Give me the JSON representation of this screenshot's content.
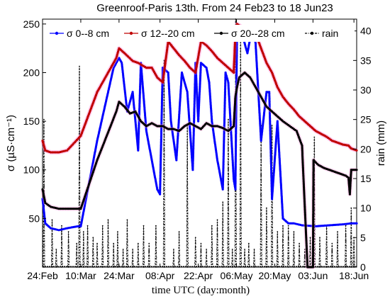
{
  "chart_data": {
    "type": "line",
    "title": "Greenroof-Paris 13th. From 24 Feb23 to 18 Jun23",
    "xlabel": "time UTC (day:month)",
    "ylabel_left": "σ (µS·cm⁻¹)",
    "ylabel_right": "rain (mm)",
    "x_tick_labels": [
      "24:Feb",
      "10:Mar",
      "24:Mar",
      "08:Apr",
      "22:Apr",
      "06:May",
      "20:May",
      "03:Jun",
      "18:Jun"
    ],
    "x_tick_days": [
      0,
      14,
      28,
      43,
      57,
      71,
      85,
      99,
      114
    ],
    "x_range_days": [
      0,
      115
    ],
    "ylim_left": [
      0,
      255
    ],
    "yticks_left": [
      50,
      100,
      150,
      200,
      250
    ],
    "ylim_right": [
      0,
      42
    ],
    "yticks_right": [
      0,
      5,
      10,
      15,
      20,
      25,
      30,
      35,
      40
    ],
    "grid": false,
    "legend_location": "top",
    "series": [
      {
        "name": "σ 0--8 cm",
        "axis": "left",
        "color": "#0000ff",
        "marker": "dot",
        "x": [
          0,
          1,
          3,
          6,
          9,
          13,
          14,
          20,
          26,
          28,
          29,
          31,
          33,
          35,
          36,
          38,
          40,
          42,
          43,
          44,
          46,
          47,
          49,
          51,
          53,
          55,
          56,
          57,
          58,
          60,
          61,
          62,
          64,
          66,
          67,
          68,
          70,
          70.6,
          71.2,
          73,
          75,
          76,
          77,
          78,
          80,
          82,
          83,
          84,
          86,
          88,
          90,
          92,
          95,
          100,
          105,
          110,
          113,
          115
        ],
        "y": [
          70,
          45,
          40,
          38,
          40,
          42,
          42,
          130,
          205,
          215,
          210,
          160,
          180,
          120,
          210,
          140,
          110,
          80,
          75,
          205,
          200,
          150,
          110,
          200,
          180,
          100,
          210,
          150,
          210,
          205,
          190,
          150,
          110,
          80,
          200,
          190,
          90,
          80,
          245,
          240,
          220,
          235,
          245,
          230,
          130,
          180,
          180,
          70,
          150,
          50,
          45,
          45,
          43,
          42,
          43,
          44,
          45,
          45
        ]
      },
      {
        "name": "σ 12--20 cm",
        "axis": "left",
        "color": "#c00000",
        "marker": "dot",
        "x": [
          0,
          1,
          3,
          6,
          9,
          13,
          14,
          20,
          27,
          28,
          30,
          33,
          35,
          38,
          40,
          42,
          44,
          46,
          48,
          50,
          52,
          54,
          56,
          58,
          60,
          62,
          64,
          66,
          68,
          70,
          70.6,
          71.2,
          74,
          76,
          78,
          80,
          82,
          84,
          86,
          88,
          90,
          92,
          94,
          96,
          98,
          100,
          102,
          104,
          106,
          108,
          110,
          112,
          113,
          115
        ],
        "y": [
          130,
          120,
          118,
          118,
          120,
          132,
          135,
          180,
          215,
          225,
          220,
          212,
          210,
          205,
          205,
          195,
          190,
          232,
          225,
          218,
          212,
          205,
          200,
          232,
          228,
          222,
          215,
          210,
          205,
          200,
          240,
          250,
          245,
          240,
          240,
          225,
          210,
          200,
          185,
          175,
          168,
          162,
          155,
          150,
          145,
          140,
          137,
          134,
          130,
          128,
          126,
          125,
          122,
          120
        ]
      },
      {
        "name": "σ 20--28 cm",
        "axis": "left",
        "color": "#000000",
        "marker": "dot",
        "x": [
          0,
          1,
          3,
          6,
          9,
          13,
          14,
          20,
          27,
          28,
          30,
          32,
          34,
          36,
          38,
          40,
          42,
          44,
          46,
          48,
          50,
          52,
          54,
          56,
          58,
          60,
          62,
          64,
          66,
          68,
          70,
          70.6,
          71.2,
          72,
          74,
          76,
          78,
          80,
          82,
          84,
          86,
          88,
          90,
          92,
          93,
          95,
          97,
          99,
          99.2,
          101,
          103,
          105,
          107,
          109,
          111,
          112,
          112.5,
          113,
          115
        ],
        "y": [
          80,
          66,
          62,
          60,
          60,
          60,
          60,
          110,
          160,
          170,
          165,
          158,
          160,
          150,
          145,
          148,
          145,
          145,
          142,
          142,
          140,
          145,
          148,
          145,
          142,
          148,
          145,
          145,
          143,
          140,
          145,
          175,
          185,
          195,
          200,
          195,
          185,
          175,
          165,
          160,
          155,
          150,
          146,
          142,
          140,
          125,
          0,
          0,
          110,
          105,
          102,
          100,
          98,
          96,
          94,
          92,
          75,
          100,
          100
        ]
      },
      {
        "name": "rain",
        "axis": "right",
        "color": "#000000",
        "marker": "dot",
        "style": "dash-dot",
        "events": [
          {
            "day": 0.5,
            "mm": 25
          },
          {
            "day": 3.5,
            "mm": 8
          },
          {
            "day": 5,
            "mm": 3
          },
          {
            "day": 7,
            "mm": 7
          },
          {
            "day": 9.5,
            "mm": 6
          },
          {
            "day": 12.5,
            "mm": 4
          },
          {
            "day": 13.5,
            "mm": 34
          },
          {
            "day": 15,
            "mm": 6
          },
          {
            "day": 16.5,
            "mm": 7
          },
          {
            "day": 18.5,
            "mm": 5
          },
          {
            "day": 20,
            "mm": 4
          },
          {
            "day": 22,
            "mm": 7
          },
          {
            "day": 24,
            "mm": 8
          },
          {
            "day": 26,
            "mm": 4
          },
          {
            "day": 27.5,
            "mm": 6
          },
          {
            "day": 29.5,
            "mm": 3
          },
          {
            "day": 31,
            "mm": 8
          },
          {
            "day": 33,
            "mm": 3
          },
          {
            "day": 35,
            "mm": 4
          },
          {
            "day": 37,
            "mm": 7
          },
          {
            "day": 39,
            "mm": 4
          },
          {
            "day": 41.5,
            "mm": 7
          },
          {
            "day": 44.5,
            "mm": 35
          },
          {
            "day": 48,
            "mm": 3
          },
          {
            "day": 50,
            "mm": 6
          },
          {
            "day": 53,
            "mm": 24
          },
          {
            "day": 56,
            "mm": 5
          },
          {
            "day": 58,
            "mm": 4
          },
          {
            "day": 60,
            "mm": 3
          },
          {
            "day": 62,
            "mm": 7
          },
          {
            "day": 64,
            "mm": 8
          },
          {
            "day": 66,
            "mm": 11
          },
          {
            "day": 68,
            "mm": 25
          },
          {
            "day": 69.5,
            "mm": 3
          },
          {
            "day": 70.7,
            "mm": 42
          },
          {
            "day": 72.5,
            "mm": 38
          },
          {
            "day": 74,
            "mm": 3
          },
          {
            "day": 75.5,
            "mm": 4
          },
          {
            "day": 77.5,
            "mm": 3
          },
          {
            "day": 80,
            "mm": 24
          },
          {
            "day": 82,
            "mm": 10
          },
          {
            "day": 84,
            "mm": 24
          },
          {
            "day": 86,
            "mm": 6
          },
          {
            "day": 88,
            "mm": 7
          },
          {
            "day": 90,
            "mm": 7
          },
          {
            "day": 92,
            "mm": 6
          },
          {
            "day": 94,
            "mm": 4
          },
          {
            "day": 96,
            "mm": 3
          },
          {
            "day": 98,
            "mm": 5
          },
          {
            "day": 99.5,
            "mm": 22
          },
          {
            "day": 101.5,
            "mm": 5
          },
          {
            "day": 104,
            "mm": 7
          },
          {
            "day": 106,
            "mm": 4
          },
          {
            "day": 108,
            "mm": 6
          },
          {
            "day": 111,
            "mm": 7
          },
          {
            "day": 113,
            "mm": 10
          },
          {
            "day": 114,
            "mm": 5
          }
        ]
      }
    ]
  }
}
